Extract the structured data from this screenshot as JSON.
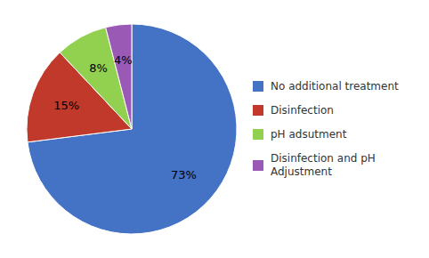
{
  "chart_data": {
    "type": "pie",
    "labels": [
      "No additional treatment",
      "Disinfection",
      "pH adsutment",
      "Disinfection and pH\nAdjustment"
    ],
    "values": [
      73,
      15,
      8,
      4
    ],
    "value_labels": [
      "73%",
      "15%",
      "8%",
      "4%"
    ],
    "colors": [
      "#4472C4",
      "#C0392B",
      "#92D050",
      "#9B59B6"
    ],
    "data_labels": true,
    "legend": "right"
  }
}
